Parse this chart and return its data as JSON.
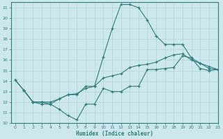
{
  "xlabel": "Humidex (Indice chaleur)",
  "xlim": [
    -0.5,
    23
  ],
  "ylim": [
    10,
    21.5
  ],
  "xticks": [
    0,
    1,
    2,
    3,
    4,
    5,
    6,
    7,
    8,
    9,
    10,
    11,
    12,
    13,
    14,
    15,
    16,
    17,
    18,
    19,
    20,
    21,
    22,
    23
  ],
  "yticks": [
    10,
    11,
    12,
    13,
    14,
    15,
    16,
    17,
    18,
    19,
    20,
    21
  ],
  "bg_color": "#cce8ec",
  "line_color": "#2e7d7a",
  "grid_color": "#b0d4d8",
  "line1_x": [
    0,
    1,
    2,
    3,
    4,
    5,
    6,
    7,
    8,
    9,
    10,
    11,
    12,
    13,
    14,
    15,
    16,
    17,
    18,
    19,
    20,
    21,
    22,
    23
  ],
  "line1_y": [
    14.1,
    13.1,
    12.0,
    11.8,
    11.8,
    11.3,
    10.7,
    10.3,
    11.8,
    11.8,
    13.3,
    13.0,
    13.0,
    13.5,
    13.5,
    15.1,
    15.1,
    15.2,
    15.3,
    16.4,
    16.2,
    15.7,
    15.2,
    15.1
  ],
  "line2_x": [
    0,
    1,
    2,
    3,
    4,
    5,
    6,
    7,
    8,
    9,
    10,
    11,
    12,
    13,
    14,
    15,
    16,
    17,
    18,
    19,
    20,
    21,
    22,
    23
  ],
  "line2_y": [
    14.1,
    13.1,
    12.0,
    12.0,
    12.0,
    12.3,
    12.7,
    12.8,
    13.3,
    13.5,
    14.3,
    14.5,
    14.7,
    15.3,
    15.5,
    15.6,
    15.8,
    16.2,
    16.5,
    16.6,
    16.0,
    15.7,
    15.4,
    15.1
  ],
  "line3_x": [
    1,
    2,
    3,
    4,
    5,
    6,
    7,
    8,
    9,
    10,
    11,
    12,
    13,
    14,
    15,
    16,
    17,
    18,
    19,
    20,
    21,
    22,
    23
  ],
  "line3_y": [
    13.1,
    12.0,
    12.0,
    11.8,
    12.3,
    12.7,
    12.7,
    13.5,
    13.5,
    16.3,
    19.0,
    21.3,
    21.3,
    21.0,
    19.8,
    18.3,
    17.5,
    17.5,
    17.5,
    16.2,
    15.2,
    15.0,
    15.1
  ]
}
